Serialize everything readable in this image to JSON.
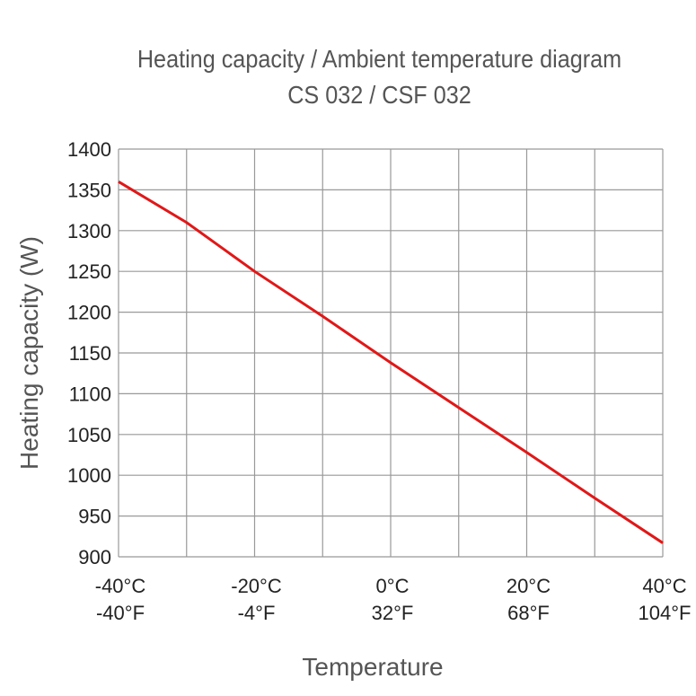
{
  "chart_data": {
    "type": "line",
    "title": "Heating capacity / Ambient temperature diagram",
    "subtitle": "CS 032 / CSF 032",
    "xlabel": "Temperature",
    "ylabel": "Heating capacity (W)",
    "xlim": [
      -40,
      40
    ],
    "ylim": [
      900,
      1400
    ],
    "grid": true,
    "yticks": [
      900,
      950,
      1000,
      1050,
      1100,
      1150,
      1200,
      1250,
      1300,
      1350,
      1400
    ],
    "xgrid": [
      -40,
      -30,
      -20,
      -10,
      0,
      10,
      20,
      30,
      40
    ],
    "xticks": [
      {
        "value": -40,
        "c": "-40°C",
        "f": "-40°F"
      },
      {
        "value": -20,
        "c": "-20°C",
        "f": "-4°F"
      },
      {
        "value": 0,
        "c": "0°C",
        "f": "32°F"
      },
      {
        "value": 20,
        "c": "20°C",
        "f": "68°F"
      },
      {
        "value": 40,
        "c": "40°C",
        "f": "104°F"
      }
    ],
    "series": [
      {
        "color": "#e01818",
        "x": [
          -40,
          -30,
          -20,
          -10,
          0,
          10,
          20,
          30,
          40
        ],
        "y": [
          1360,
          1310,
          1250,
          1195,
          1138,
          1083,
          1028,
          972,
          917
        ]
      }
    ]
  }
}
